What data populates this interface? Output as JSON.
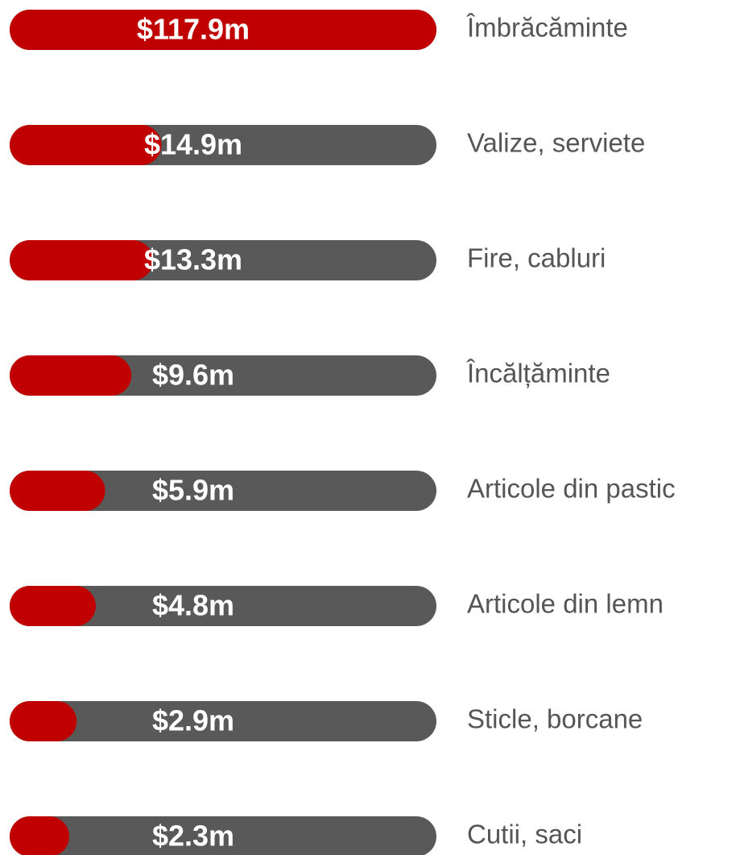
{
  "chart_data": {
    "type": "progress_bar",
    "categories": [
      "Îmbrăcăminte",
      "Valize, serviete",
      "Fire, cabluri",
      "Încălțăminte",
      "Articole din pastic",
      "Articole din lemn",
      "Sticle, borcane",
      "Cutii, saci"
    ],
    "values": [
      117.9,
      14.9,
      13.3,
      9.6,
      5.9,
      4.8,
      2.9,
      2.3
    ],
    "value_labels": [
      "$117.9m",
      "$14.9m",
      "$13.3m",
      "$9.6m",
      "$5.9m",
      "$4.8m",
      "$2.9m",
      "$2.3m"
    ],
    "xlim": [
      0,
      117.9
    ],
    "scale": "sqrt",
    "color": "#c00000",
    "track_color": "#595959"
  }
}
